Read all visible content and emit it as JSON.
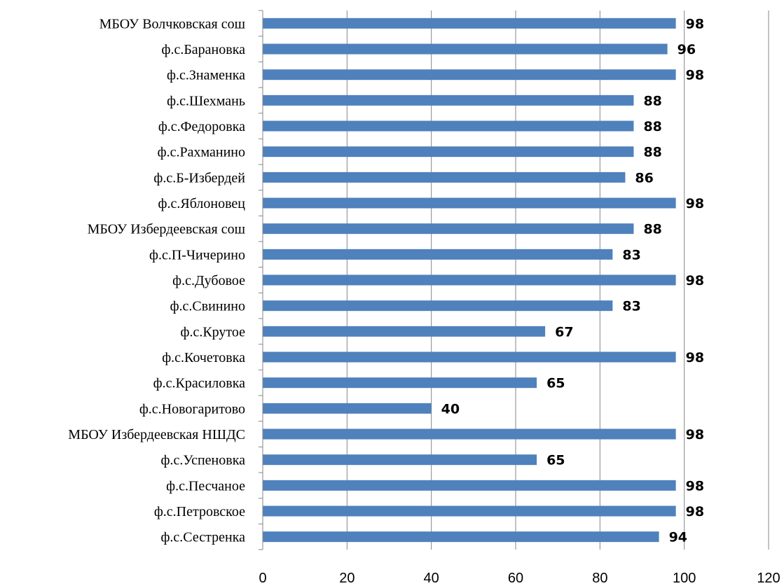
{
  "chart_data": {
    "type": "bar",
    "orientation": "horizontal",
    "title": "",
    "xlabel": "",
    "ylabel": "",
    "categories": [
      "МБОУ Волчковская сош",
      "ф.с.Барановка",
      "ф.с.Знаменка",
      "ф.с.Шехмань",
      "ф.с.Федоровка",
      "ф.с.Рахманино",
      "ф.с.Б-Избердей",
      "ф.с.Яблоновец",
      "МБОУ Избердеевская сош",
      "ф.с.П-Чичерино",
      "ф.с.Дубовое",
      "ф.с.Свинино",
      "ф.с.Крутое",
      "ф.с.Кочетовка",
      "ф.с.Красиловка",
      "ф.с.Новогаритово",
      "МБОУ Избердеевская НШДС",
      "ф.с.Успеновка",
      "ф.с.Песчаное",
      "ф.с.Петровское",
      "ф.с.Сестренка"
    ],
    "values": [
      98,
      96,
      98,
      88,
      88,
      88,
      86,
      98,
      88,
      83,
      98,
      83,
      67,
      98,
      65,
      40,
      98,
      65,
      98,
      98,
      94
    ],
    "data_labels": [
      "98",
      "96",
      "98",
      "88",
      "88",
      "88",
      "86",
      "98",
      "88",
      "83",
      "98",
      "83",
      "67",
      "98",
      "65",
      "40",
      "98",
      "65",
      "98",
      "98",
      "94"
    ],
    "xlim": [
      0,
      120
    ],
    "x_ticks": [
      0,
      20,
      40,
      60,
      80,
      100,
      120
    ],
    "x_tick_labels": [
      "0",
      "20",
      "40",
      "60",
      "80",
      "100",
      "120"
    ],
    "grid": "vertical",
    "legend": "none",
    "colors": {
      "bar": "#4F81BD",
      "gridline": "#868686",
      "axis": "#868686"
    }
  }
}
